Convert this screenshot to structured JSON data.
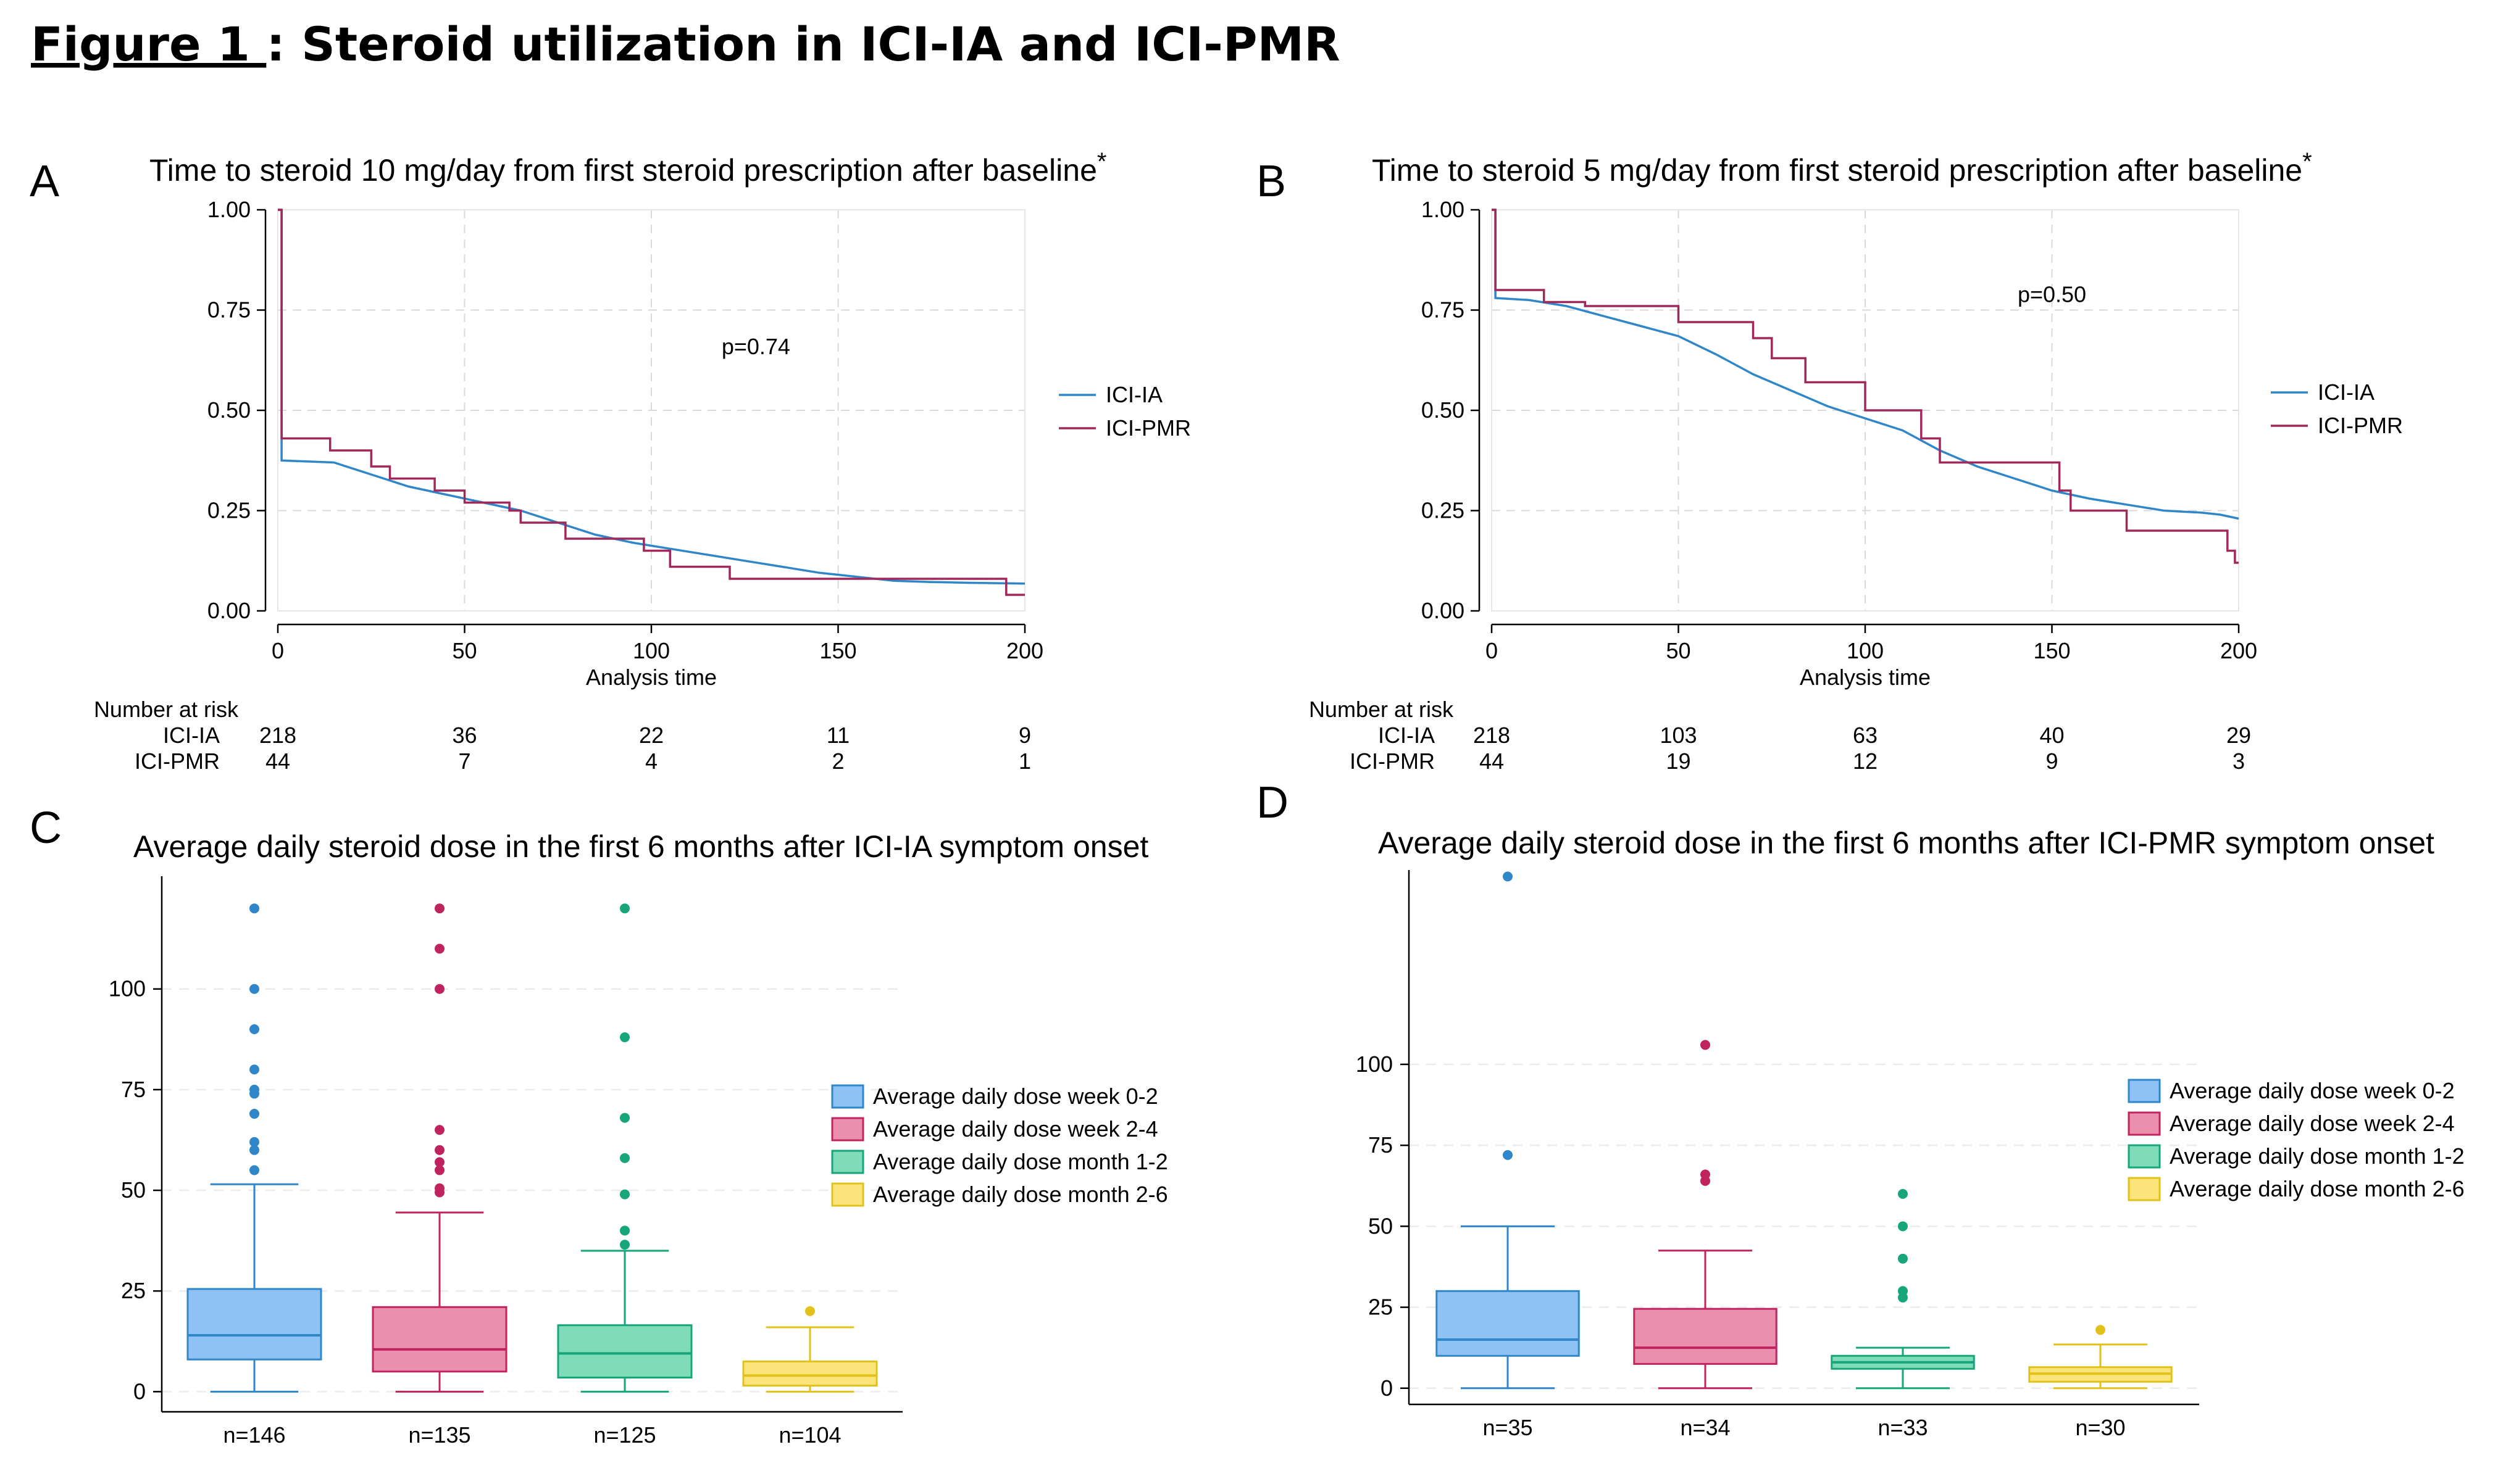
{
  "figure": {
    "title_prefix": "Figure 1 ",
    "title_rest": ": Steroid utilization in ICI-IA and ICI-PMR"
  },
  "colors": {
    "ia": "#2f86c8",
    "pmr": "#a0285a",
    "grid": "#d9d9d9"
  },
  "chart_data": [
    {
      "panel": "A",
      "type": "line",
      "title": "Time to steroid 10 mg/day from first steroid prescription after baseline",
      "title_mark": "*",
      "xlabel": "Analysis time",
      "ylabel": "",
      "xlim": [
        0,
        200
      ],
      "ylim": [
        0,
        1
      ],
      "x_ticks": [
        "0",
        "50",
        "100",
        "150",
        "200"
      ],
      "y_ticks": [
        "0.00",
        "0.25",
        "0.50",
        "0.75",
        "1.00"
      ],
      "annotation": "p=0.74",
      "legend": [
        "ICI-IA",
        "ICI-PMR"
      ],
      "series": [
        {
          "name": "ICI-IA",
          "points": [
            [
              0,
              1.0
            ],
            [
              1,
              1.0
            ],
            [
              1,
              0.375
            ],
            [
              15,
              0.37
            ],
            [
              25,
              0.34
            ],
            [
              35,
              0.31
            ],
            [
              45,
              0.29
            ],
            [
              55,
              0.27
            ],
            [
              65,
              0.25
            ],
            [
              75,
              0.22
            ],
            [
              85,
              0.19
            ],
            [
              95,
              0.17
            ],
            [
              105,
              0.155
            ],
            [
              115,
              0.14
            ],
            [
              125,
              0.125
            ],
            [
              135,
              0.11
            ],
            [
              145,
              0.095
            ],
            [
              155,
              0.085
            ],
            [
              165,
              0.075
            ],
            [
              175,
              0.072
            ],
            [
              185,
              0.07
            ],
            [
              200,
              0.068
            ]
          ]
        },
        {
          "name": "ICI-PMR",
          "points": [
            [
              0,
              1.0
            ],
            [
              1,
              1.0
            ],
            [
              1,
              0.43
            ],
            [
              14,
              0.43
            ],
            [
              14,
              0.4
            ],
            [
              25,
              0.4
            ],
            [
              25,
              0.36
            ],
            [
              30,
              0.36
            ],
            [
              30,
              0.33
            ],
            [
              42,
              0.33
            ],
            [
              42,
              0.3
            ],
            [
              50,
              0.3
            ],
            [
              50,
              0.27
            ],
            [
              62,
              0.27
            ],
            [
              62,
              0.25
            ],
            [
              65,
              0.25
            ],
            [
              65,
              0.22
            ],
            [
              77,
              0.22
            ],
            [
              77,
              0.18
            ],
            [
              98,
              0.18
            ],
            [
              98,
              0.15
            ],
            [
              105,
              0.15
            ],
            [
              105,
              0.11
            ],
            [
              121,
              0.11
            ],
            [
              121,
              0.08
            ],
            [
              195,
              0.08
            ],
            [
              195,
              0.04
            ],
            [
              200,
              0.04
            ]
          ]
        }
      ],
      "risk_table": {
        "header": "Number at risk",
        "rows": [
          {
            "label": "ICI-IA",
            "values": [
              "218",
              "36",
              "22",
              "11",
              "9"
            ]
          },
          {
            "label": "ICI-PMR",
            "values": [
              "44",
              "7",
              "4",
              "2",
              "1"
            ]
          }
        ]
      }
    },
    {
      "panel": "B",
      "type": "line",
      "title": "Time to steroid 5 mg/day from first steroid prescription after baseline",
      "title_mark": "*",
      "xlabel": "Analysis time",
      "ylabel": "",
      "xlim": [
        0,
        200
      ],
      "ylim": [
        0,
        1
      ],
      "x_ticks": [
        "0",
        "50",
        "100",
        "150",
        "200"
      ],
      "y_ticks": [
        "0.00",
        "0.25",
        "0.50",
        "0.75",
        "1.00"
      ],
      "annotation": "p=0.50",
      "legend": [
        "ICI-IA",
        "ICI-PMR"
      ],
      "series": [
        {
          "name": "ICI-IA",
          "points": [
            [
              0,
              1.0
            ],
            [
              1,
              1.0
            ],
            [
              1,
              0.78
            ],
            [
              10,
              0.775
            ],
            [
              20,
              0.76
            ],
            [
              30,
              0.735
            ],
            [
              40,
              0.71
            ],
            [
              50,
              0.685
            ],
            [
              60,
              0.64
            ],
            [
              70,
              0.59
            ],
            [
              80,
              0.55
            ],
            [
              90,
              0.51
            ],
            [
              100,
              0.48
            ],
            [
              110,
              0.45
            ],
            [
              120,
              0.4
            ],
            [
              130,
              0.36
            ],
            [
              140,
              0.33
            ],
            [
              150,
              0.3
            ],
            [
              160,
              0.28
            ],
            [
              170,
              0.265
            ],
            [
              180,
              0.25
            ],
            [
              190,
              0.245
            ],
            [
              195,
              0.24
            ],
            [
              200,
              0.23
            ]
          ]
        },
        {
          "name": "ICI-PMR",
          "points": [
            [
              0,
              1.0
            ],
            [
              1,
              1.0
            ],
            [
              1,
              0.8
            ],
            [
              14,
              0.8
            ],
            [
              14,
              0.77
            ],
            [
              25,
              0.77
            ],
            [
              25,
              0.76
            ],
            [
              50,
              0.76
            ],
            [
              50,
              0.72
            ],
            [
              70,
              0.72
            ],
            [
              70,
              0.68
            ],
            [
              75,
              0.68
            ],
            [
              75,
              0.63
            ],
            [
              84,
              0.63
            ],
            [
              84,
              0.57
            ],
            [
              100,
              0.57
            ],
            [
              100,
              0.5
            ],
            [
              115,
              0.5
            ],
            [
              115,
              0.43
            ],
            [
              120,
              0.43
            ],
            [
              120,
              0.37
            ],
            [
              152,
              0.37
            ],
            [
              152,
              0.3
            ],
            [
              155,
              0.3
            ],
            [
              155,
              0.25
            ],
            [
              170,
              0.25
            ],
            [
              170,
              0.2
            ],
            [
              197,
              0.2
            ],
            [
              197,
              0.15
            ],
            [
              199,
              0.15
            ],
            [
              199,
              0.12
            ],
            [
              200,
              0.12
            ]
          ]
        }
      ],
      "risk_table": {
        "header": "Number at risk",
        "rows": [
          {
            "label": "ICI-IA",
            "values": [
              "218",
              "103",
              "63",
              "40",
              "29"
            ]
          },
          {
            "label": "ICI-PMR",
            "values": [
              "44",
              "19",
              "12",
              "9",
              "3"
            ]
          }
        ]
      }
    },
    {
      "panel": "C",
      "type": "box",
      "title": "Average daily steroid dose in the first 6 months after ICI-IA symptom onset",
      "xlabel": "",
      "ylabel": "",
      "ylim": [
        -5,
        128
      ],
      "y_ticks": [
        0,
        25,
        50,
        75,
        100
      ],
      "grid": true,
      "legend": [
        "Average daily dose week 0-2",
        "Average daily dose week 2-4",
        "Average daily dose month 1-2",
        "Average daily dose month 2-6"
      ],
      "boxes": [
        {
          "label": "n=146",
          "min": 0,
          "q1": 8,
          "median": 14,
          "q3": 25.5,
          "max": 51.5,
          "outliers": [
            55,
            60,
            62,
            69,
            74,
            75,
            80,
            90,
            100,
            120
          ],
          "fill": "#8ec2f5",
          "stroke": "#2f86c8"
        },
        {
          "label": "n=135",
          "min": 0,
          "q1": 5,
          "median": 10.5,
          "q3": 21,
          "max": 44.5,
          "outliers": [
            49.5,
            50.5,
            55,
            57,
            60,
            65,
            100,
            110,
            120
          ],
          "fill": "#ea8fae",
          "stroke": "#c0245f"
        },
        {
          "label": "n=125",
          "min": 0,
          "q1": 3.5,
          "median": 9.5,
          "q3": 16.5,
          "max": 35,
          "outliers": [
            36.5,
            40,
            49,
            58,
            68,
            88,
            120
          ],
          "fill": "#7fdcb8",
          "stroke": "#17a57a"
        },
        {
          "label": "n=104",
          "min": 0,
          "q1": 1.5,
          "median": 4,
          "q3": 7.5,
          "max": 16,
          "outliers": [
            20
          ],
          "fill": "#fbe57a",
          "stroke": "#e2c21a"
        }
      ]
    },
    {
      "panel": "D",
      "type": "box",
      "title": "Average daily steroid dose in the first 6 months after ICI-PMR symptom onset",
      "xlabel": "",
      "ylabel": "",
      "ylim": [
        -5,
        160
      ],
      "y_ticks": [
        0,
        25,
        50,
        75,
        100
      ],
      "grid": true,
      "legend": [
        "Average daily dose week 0-2",
        "Average daily dose week 2-4",
        "Average daily dose month 1-2",
        "Average daily dose month 2-6"
      ],
      "boxes": [
        {
          "label": "n=35",
          "min": 0,
          "q1": 10,
          "median": 15,
          "q3": 30,
          "max": 50,
          "outliers": [
            72,
            158
          ],
          "fill": "#8ec2f5",
          "stroke": "#2f86c8"
        },
        {
          "label": "n=34",
          "min": 0,
          "q1": 7.5,
          "median": 12.5,
          "q3": 24.5,
          "max": 42.5,
          "outliers": [
            64,
            66,
            106
          ],
          "fill": "#ea8fae",
          "stroke": "#c0245f"
        },
        {
          "label": "n=33",
          "min": 0,
          "q1": 6,
          "median": 8,
          "q3": 10,
          "max": 12.5,
          "outliers": [
            28,
            30,
            40,
            50,
            60
          ],
          "fill": "#7fdcb8",
          "stroke": "#17a57a"
        },
        {
          "label": "n=30",
          "min": 0,
          "q1": 2,
          "median": 4.5,
          "q3": 6.5,
          "max": 13.5,
          "outliers": [
            18
          ],
          "fill": "#fbe57a",
          "stroke": "#e2c21a"
        }
      ]
    }
  ]
}
